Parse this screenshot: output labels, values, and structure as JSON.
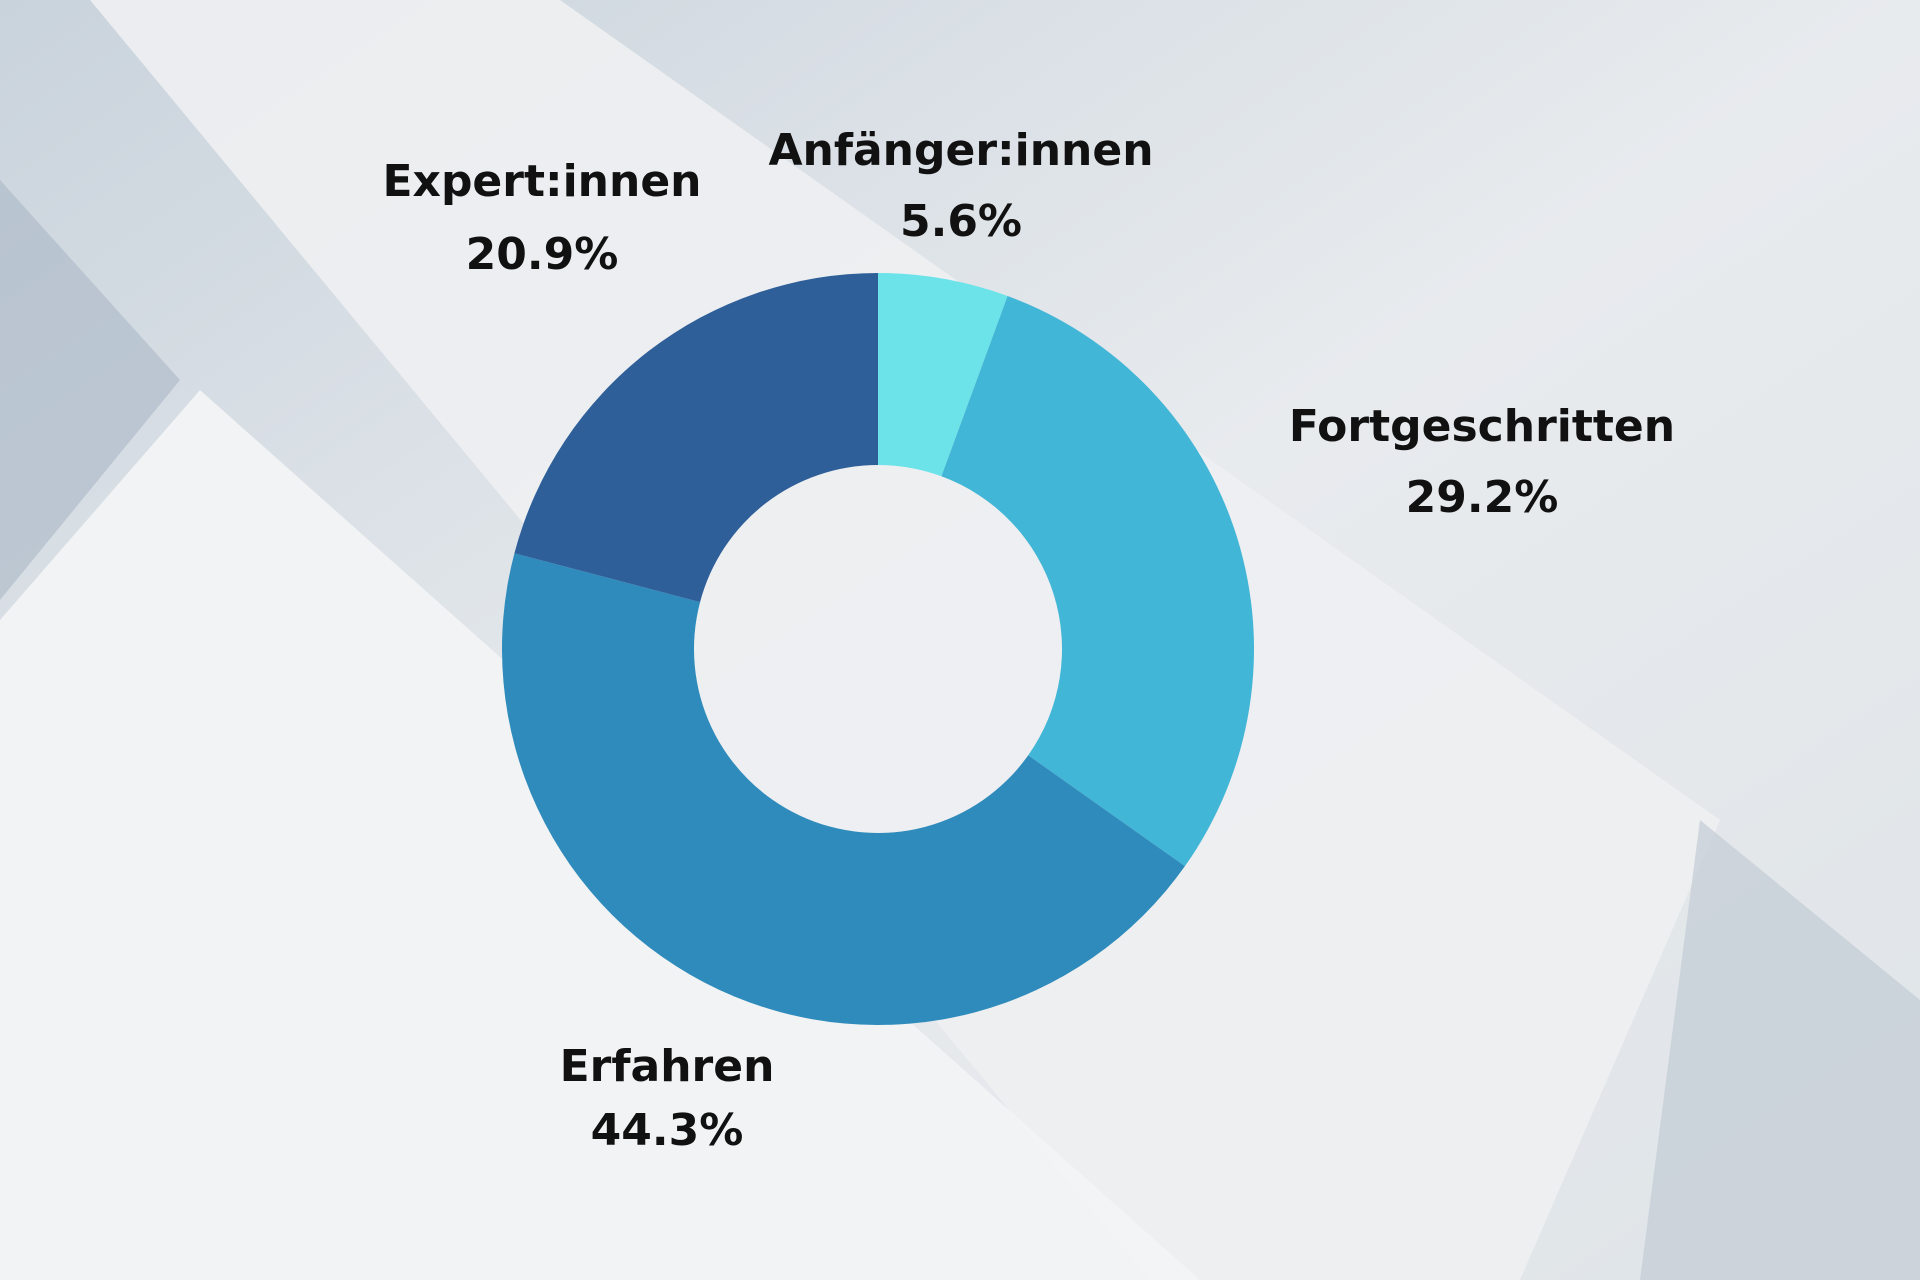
{
  "chart_data": {
    "type": "donut",
    "categories": [
      "Anfänger:innen",
      "Fortgeschritten",
      "Erfahren",
      "Expert:innen"
    ],
    "values": [
      5.6,
      29.2,
      44.3,
      20.9
    ],
    "value_labels": [
      "5.6%",
      "29.2%",
      "44.3%",
      "20.9%"
    ],
    "colors": [
      "#6ce3e8",
      "#42b6d6",
      "#2e8bbb",
      "#2e5f99"
    ]
  }
}
